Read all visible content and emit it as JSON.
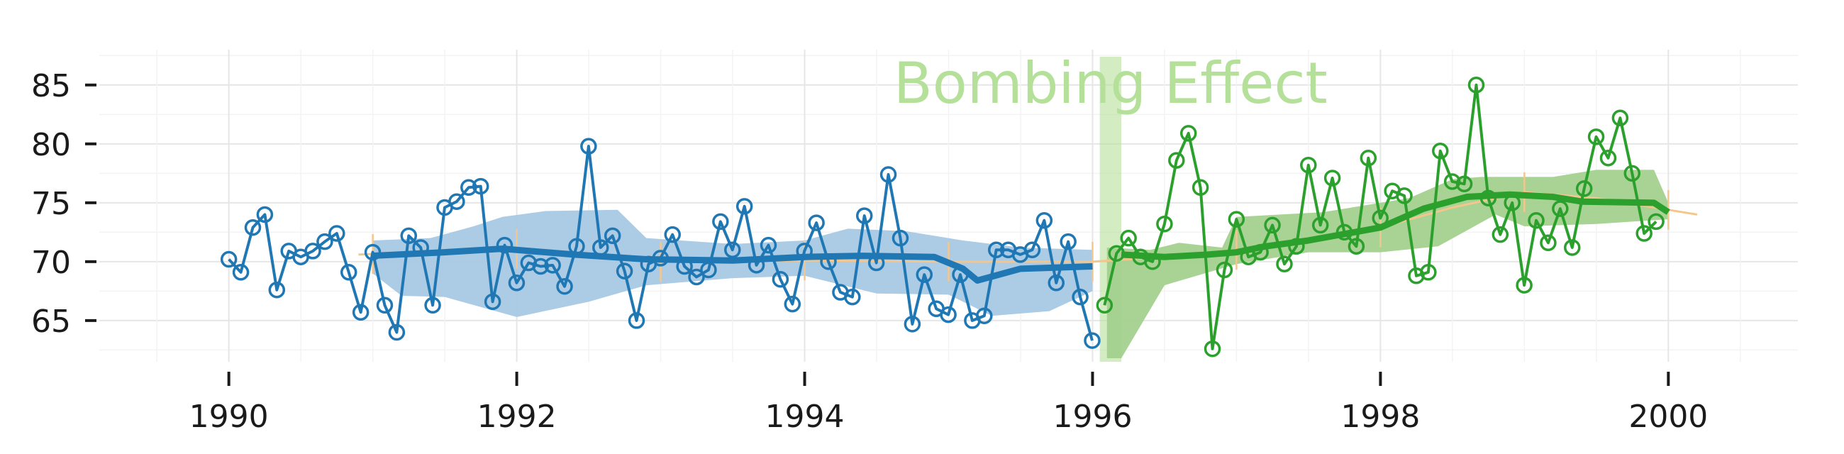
{
  "chart_data": {
    "type": "line",
    "title": "",
    "xlabel": "",
    "ylabel": "",
    "xlim": [
      1989.1,
      2000.9
    ],
    "ylim": [
      61.5,
      88.0
    ],
    "x_ticks": [
      1990,
      1992,
      1994,
      1996,
      1998,
      2000
    ],
    "x_tick_labels": [
      "1990",
      "1992",
      "1994",
      "1996",
      "1998",
      "2000"
    ],
    "y_ticks": [
      65,
      70,
      75,
      80,
      85
    ],
    "y_tick_labels": [
      "65",
      "70",
      "75",
      "80",
      "85"
    ],
    "grid": true,
    "legend": "none",
    "annotation": {
      "text": "Bombing Effect",
      "x_start": 1996.05,
      "x_end": 1996.2,
      "color": "#b5e09a"
    },
    "series": [
      {
        "color": "#1f77b4",
        "band_color": "#a8c8e4",
        "x_start": 1990.0,
        "step": 0.0833,
        "values": [
          70.2,
          69.1,
          72.9,
          74.0,
          67.6,
          70.9,
          70.4,
          70.9,
          71.7,
          72.4,
          69.1,
          65.7,
          70.8,
          66.3,
          64.0,
          72.2,
          71.2,
          66.3,
          74.6,
          75.1,
          76.3,
          76.4,
          66.6,
          71.4,
          68.2,
          69.9,
          69.6,
          69.7,
          67.9,
          71.3,
          79.8,
          71.2,
          72.2,
          69.2,
          65.0,
          69.8,
          70.3,
          72.3,
          69.6,
          68.7,
          69.3,
          73.4,
          71.0,
          74.7,
          69.7,
          71.4,
          68.5,
          66.4,
          70.9,
          73.3,
          70.0,
          67.4,
          67.0,
          73.9,
          69.9,
          77.4,
          72.0,
          64.7,
          68.9,
          66.0,
          65.5,
          68.9,
          65.0,
          65.4,
          71.0,
          71.0,
          70.6,
          71.0,
          73.5,
          68.2,
          71.7,
          67.0,
          63.3
        ],
        "smooth": [
          [
            1991.0,
            70.5
          ],
          [
            1991.5,
            70.8
          ],
          [
            1991.9,
            71.1
          ],
          [
            1992.4,
            70.6
          ],
          [
            1992.9,
            70.2
          ],
          [
            1993.5,
            70.1
          ],
          [
            1994.0,
            70.4
          ],
          [
            1994.4,
            70.5
          ],
          [
            1994.9,
            70.4
          ],
          [
            1995.1,
            69.4
          ],
          [
            1995.2,
            68.4
          ],
          [
            1995.5,
            69.4
          ],
          [
            1996.0,
            69.6
          ]
        ],
        "band_upper": [
          [
            1991.0,
            71.8
          ],
          [
            1991.4,
            72.0
          ],
          [
            1991.7,
            73.0
          ],
          [
            1991.9,
            73.8
          ],
          [
            1992.2,
            74.3
          ],
          [
            1992.7,
            74.4
          ],
          [
            1992.9,
            72.0
          ],
          [
            1993.5,
            71.5
          ],
          [
            1994.0,
            71.8
          ],
          [
            1994.3,
            72.8
          ],
          [
            1994.7,
            72.6
          ],
          [
            1995.1,
            71.8
          ],
          [
            1995.5,
            71.2
          ],
          [
            1996.0,
            71.0
          ]
        ],
        "band_lower": [
          [
            1996.0,
            67.5
          ],
          [
            1995.7,
            65.8
          ],
          [
            1995.3,
            65.4
          ],
          [
            1995.0,
            67.2
          ],
          [
            1994.5,
            67.3
          ],
          [
            1994.0,
            68.8
          ],
          [
            1993.5,
            68.6
          ],
          [
            1992.9,
            68.0
          ],
          [
            1992.5,
            66.6
          ],
          [
            1992.0,
            65.3
          ],
          [
            1991.5,
            67.0
          ],
          [
            1991.2,
            67.1
          ],
          [
            1991.0,
            69.0
          ]
        ]
      },
      {
        "color": "#2ca02c",
        "band_color": "#a3d18e",
        "x_start": 1996.0833,
        "step": 0.0833,
        "values": [
          66.3,
          70.7,
          72.0,
          70.4,
          70.0,
          73.2,
          78.6,
          80.9,
          76.3,
          62.6,
          69.3,
          73.6,
          70.4,
          70.8,
          73.1,
          69.8,
          71.3,
          78.2,
          73.1,
          77.1,
          72.5,
          71.3,
          78.8,
          73.7,
          76.0,
          75.6,
          68.8,
          69.1,
          79.4,
          76.8,
          76.6,
          85.0,
          75.4,
          72.3,
          75.0,
          68.0,
          73.5,
          71.6,
          74.5,
          71.2,
          76.2,
          80.6,
          78.8,
          82.2,
          77.5,
          72.4,
          73.4
        ],
        "smooth": [
          [
            1996.2,
            70.6
          ],
          [
            1996.5,
            70.4
          ],
          [
            1996.8,
            70.6
          ],
          [
            1997.0,
            70.8
          ],
          [
            1997.2,
            71.3
          ],
          [
            1997.5,
            71.8
          ],
          [
            1998.0,
            72.9
          ],
          [
            1998.3,
            74.5
          ],
          [
            1998.6,
            75.5
          ],
          [
            1998.9,
            75.7
          ],
          [
            1999.2,
            75.5
          ],
          [
            1999.4,
            75.1
          ],
          [
            1999.9,
            75.0
          ],
          [
            2000.0,
            74.2
          ]
        ],
        "band_upper": [
          [
            1996.1,
            71.2
          ],
          [
            1996.4,
            71.0
          ],
          [
            1996.6,
            71.6
          ],
          [
            1996.9,
            71.2
          ],
          [
            1997.0,
            73.8
          ],
          [
            1997.6,
            74.2
          ],
          [
            1998.2,
            75.4
          ],
          [
            1998.5,
            77.0
          ],
          [
            1998.7,
            77.2
          ],
          [
            1999.2,
            77.2
          ],
          [
            1999.5,
            77.8
          ],
          [
            1999.9,
            77.8
          ],
          [
            2000.0,
            75.0
          ]
        ],
        "band_lower": [
          [
            2000.0,
            73.6
          ],
          [
            1999.5,
            73.2
          ],
          [
            1999.0,
            73.0
          ],
          [
            1998.8,
            74.0
          ],
          [
            1998.4,
            71.3
          ],
          [
            1998.0,
            70.8
          ],
          [
            1997.5,
            70.8
          ],
          [
            1997.0,
            69.8
          ],
          [
            1996.5,
            68.0
          ],
          [
            1996.2,
            61.8
          ],
          [
            1996.1,
            61.8
          ]
        ]
      }
    ],
    "mean_line": {
      "color": "#f4c68c",
      "points": [
        [
          1990.9,
          70.6
        ],
        [
          1991.5,
          70.9
        ],
        [
          1992.0,
          71.1
        ],
        [
          1992.5,
          70.6
        ],
        [
          1993.0,
          70.0
        ],
        [
          1994.0,
          70.1
        ],
        [
          1995.0,
          70.0
        ],
        [
          1996.0,
          70.0
        ],
        [
          1996.5,
          70.4
        ],
        [
          1997.0,
          71.0
        ],
        [
          1997.5,
          71.8
        ],
        [
          1998.0,
          72.9
        ],
        [
          1998.5,
          74.6
        ],
        [
          1999.0,
          75.9
        ],
        [
          1999.5,
          75.4
        ],
        [
          2000.2,
          74.0
        ]
      ],
      "tick_x": [
        1991,
        1992,
        1993,
        1994,
        1995,
        1996,
        1997,
        1998,
        1999,
        2000
      ]
    }
  }
}
